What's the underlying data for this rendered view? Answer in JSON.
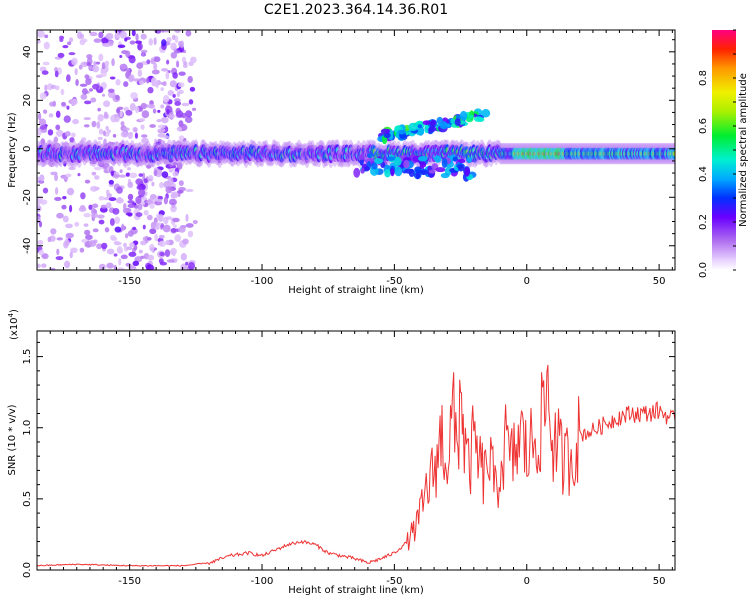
{
  "title": "C2E1.2023.364.14.36.R01",
  "colors": {
    "snr_line": "#ee3333",
    "axis": "#000000",
    "background": "#ffffff"
  },
  "chart_data": [
    {
      "type": "heatmap",
      "xlabel": "Height of straight line (km)",
      "ylabel": "Frequency (Hz)",
      "xlim": [
        -185,
        56
      ],
      "ylim": [
        -50,
        49
      ],
      "xticks": [
        -150,
        -100,
        -50,
        0,
        50
      ],
      "yticks": [
        -40,
        -20,
        0,
        20,
        40
      ],
      "colorbar": {
        "label": "Normalized spectral amplitude",
        "range": [
          0,
          1
        ],
        "ticks": [
          0.0,
          0.2,
          0.4,
          0.6,
          0.8
        ],
        "colormap": "rainbow (purple to red)"
      },
      "features": [
        {
          "description": "scattered noise band",
          "x_range": [
            -185,
            -125
          ],
          "freq_range": [
            -50,
            49
          ],
          "amplitude": 0.1
        },
        {
          "description": "main echo trace",
          "x_range": [
            -185,
            56
          ],
          "freq_center_start": -2,
          "freq_center_end": -2,
          "amplitude_range": [
            0.2,
            1.0
          ]
        },
        {
          "description": "upper branch",
          "x_range": [
            -55,
            -15
          ],
          "freq_range": [
            5,
            20
          ],
          "amplitude": 0.4
        },
        {
          "description": "lower branch",
          "x_range": [
            -65,
            -20
          ],
          "freq_range": [
            -12,
            -4
          ],
          "amplitude": 0.3
        }
      ]
    },
    {
      "type": "line",
      "xlabel": "Height of straight line (km)",
      "ylabel": "SNR (10 * v/v)",
      "yunit": "(x10",
      "yunit_exp": "4",
      "yunit_close": ")",
      "xlim": [
        -185,
        56
      ],
      "ylim": [
        0,
        1.68
      ],
      "xticks": [
        -150,
        -100,
        -50,
        0,
        50
      ],
      "yticks": [
        0.0,
        0.5,
        1.0,
        1.5
      ],
      "series": [
        {
          "x": [
            -185,
            -170,
            -150,
            -130,
            -120,
            -112,
            -105,
            -100,
            -95,
            -90,
            -85,
            -80,
            -75,
            -70,
            -65,
            -60,
            -55,
            -50,
            -45,
            -42,
            -40,
            -38,
            -35,
            -32,
            -30,
            -28,
            -26,
            -25,
            -24,
            -22,
            -20,
            -18,
            -16,
            -14,
            -12,
            -10,
            -8,
            -6,
            -4,
            -2,
            0,
            2,
            4,
            6,
            8,
            9,
            10,
            12,
            14,
            16,
            18,
            20,
            25,
            30,
            35,
            40,
            45,
            50,
            56
          ],
          "y": [
            0.03,
            0.04,
            0.03,
            0.03,
            0.05,
            0.1,
            0.12,
            0.1,
            0.14,
            0.18,
            0.2,
            0.18,
            0.12,
            0.1,
            0.08,
            0.05,
            0.08,
            0.12,
            0.2,
            0.3,
            0.4,
            0.55,
            0.7,
            0.95,
            0.75,
            1.1,
            0.8,
            1.45,
            0.95,
            0.7,
            0.9,
            0.75,
            0.65,
            0.8,
            0.55,
            0.7,
            0.9,
            0.75,
            0.85,
            0.95,
            0.8,
            0.9,
            0.95,
            1.05,
            1.3,
            1.0,
            0.9,
            0.85,
            0.75,
            0.8,
            0.85,
            0.95,
            0.98,
            1.03,
            1.08,
            1.1,
            1.1,
            1.12,
            1.05
          ]
        }
      ]
    }
  ]
}
